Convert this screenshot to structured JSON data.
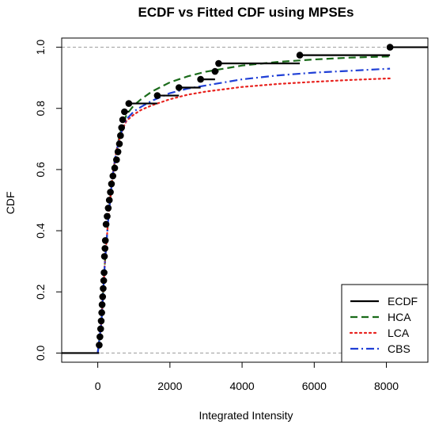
{
  "chart_data": {
    "type": "line",
    "title": "ECDF vs Fitted CDF using MPSEs",
    "xlabel": "Integrated Intensity",
    "ylabel": "CDF",
    "xlim": [
      -1000,
      9150
    ],
    "ylim": [
      -0.03,
      1.03
    ],
    "x_ticks": [
      0,
      2000,
      4000,
      6000,
      8000
    ],
    "x_tick_labels": [
      "0",
      "2000",
      "4000",
      "6000",
      "8000"
    ],
    "y_ticks": [
      0.0,
      0.2,
      0.4,
      0.6,
      0.8,
      1.0
    ],
    "y_tick_labels": [
      "0.0",
      "0.2",
      "0.4",
      "0.6",
      "0.8",
      "1.0"
    ],
    "reference_lines_y": [
      0,
      1
    ],
    "legend": {
      "position": "bottom-right",
      "entries": [
        {
          "label": "ECDF",
          "color": "#000000",
          "style": "solid"
        },
        {
          "label": "HCA",
          "color": "#1a6b1a",
          "style": "dashed"
        },
        {
          "label": "LCA",
          "color": "#e8231f",
          "style": "dotted"
        },
        {
          "label": "CBS",
          "color": "#1f3fd6",
          "style": "dashdot"
        }
      ]
    },
    "series": [
      {
        "name": "ECDF",
        "kind": "step",
        "color": "#000000",
        "x": [
          40,
          60,
          80,
          95,
          110,
          120,
          135,
          150,
          165,
          175,
          185,
          200,
          210,
          230,
          260,
          290,
          320,
          350,
          380,
          420,
          470,
          520,
          560,
          600,
          630,
          660,
          690,
          740,
          860,
          1650,
          2250,
          2850,
          3250,
          3350,
          5600,
          8100
        ],
        "y": [
          0.026,
          0.053,
          0.079,
          0.105,
          0.132,
          0.158,
          0.184,
          0.211,
          0.237,
          0.263,
          0.316,
          0.342,
          0.368,
          0.421,
          0.447,
          0.474,
          0.5,
          0.526,
          0.553,
          0.579,
          0.605,
          0.632,
          0.658,
          0.684,
          0.711,
          0.737,
          0.763,
          0.789,
          0.816,
          0.842,
          0.868,
          0.895,
          0.921,
          0.947,
          0.974,
          1.0
        ]
      },
      {
        "name": "HCA",
        "kind": "dashed",
        "color": "#1a6b1a",
        "x": [
          0,
          100,
          200,
          300,
          400,
          500,
          600,
          700,
          800,
          1000,
          1200,
          1500,
          2000,
          2500,
          3000,
          4000,
          5000,
          6000,
          7000,
          8100
        ],
        "y": [
          0.0,
          0.1,
          0.3,
          0.45,
          0.57,
          0.65,
          0.71,
          0.75,
          0.78,
          0.81,
          0.83,
          0.855,
          0.885,
          0.905,
          0.92,
          0.94,
          0.952,
          0.96,
          0.966,
          0.97
        ]
      },
      {
        "name": "LCA",
        "kind": "dotted",
        "color": "#e8231f",
        "x": [
          0,
          100,
          200,
          300,
          400,
          500,
          600,
          700,
          800,
          1000,
          1200,
          1500,
          2000,
          2500,
          3000,
          4000,
          5000,
          6000,
          7000,
          8100
        ],
        "y": [
          0.0,
          0.1,
          0.3,
          0.45,
          0.57,
          0.65,
          0.7,
          0.735,
          0.76,
          0.78,
          0.795,
          0.81,
          0.83,
          0.845,
          0.855,
          0.87,
          0.88,
          0.887,
          0.893,
          0.898
        ]
      },
      {
        "name": "CBS",
        "kind": "dashdot",
        "color": "#1f3fd6",
        "x": [
          0,
          100,
          200,
          300,
          400,
          500,
          600,
          700,
          800,
          1000,
          1200,
          1500,
          2000,
          2500,
          3000,
          4000,
          5000,
          6000,
          7000,
          8100
        ],
        "y": [
          0.0,
          0.1,
          0.3,
          0.45,
          0.57,
          0.65,
          0.7,
          0.74,
          0.765,
          0.79,
          0.805,
          0.825,
          0.85,
          0.865,
          0.875,
          0.895,
          0.908,
          0.917,
          0.923,
          0.93
        ]
      }
    ]
  }
}
